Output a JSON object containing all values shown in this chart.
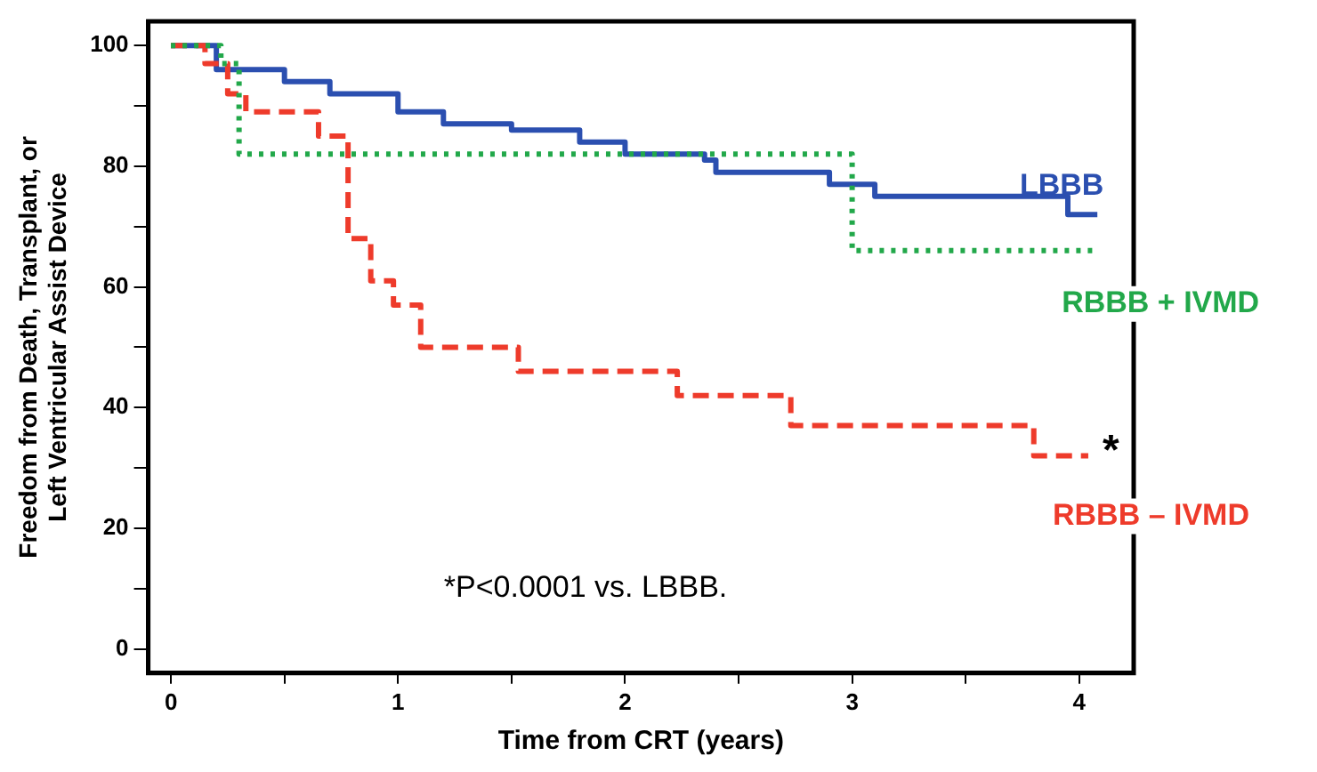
{
  "chart_data": {
    "type": "step",
    "xlabel": "Time from CRT (years)",
    "ylabel": "Freedom from Death, Transplant, or Left Ventricular Assist Device",
    "xlim": [
      -0.1,
      4.24
    ],
    "ylim": [
      -4,
      104
    ],
    "xticks": [
      0,
      {
        "value": 0.5,
        "label": null
      },
      1,
      {
        "value": 1.5,
        "label": null
      },
      2,
      {
        "value": 2.5,
        "label": null
      },
      3,
      {
        "value": 3.5,
        "label": null
      },
      4
    ],
    "yticks": [
      0,
      {
        "value": 10,
        "label": null
      },
      20,
      {
        "value": 30,
        "label": null
      },
      40,
      {
        "value": 50,
        "label": null
      },
      60,
      {
        "value": 70,
        "label": null
      },
      80,
      {
        "value": 90,
        "label": null
      },
      100
    ],
    "grid": false,
    "legend": false,
    "marker": "none",
    "series": [
      {
        "name": "LBBB",
        "color": "#2b4fb0",
        "line_style": "solid",
        "x": [
          0,
          0.2,
          0.5,
          0.7,
          1,
          1.2,
          1.5,
          1.8,
          2,
          2.35,
          2.4,
          2.9,
          3.1,
          3.95,
          4.08
        ],
        "values": [
          100,
          96,
          94,
          92,
          89,
          87,
          86,
          84,
          82,
          81,
          79,
          77,
          75,
          72,
          72
        ]
      },
      {
        "name": "RBBB + IVMD",
        "color": "#22a84a",
        "line_style": "dotted",
        "x": [
          0,
          0.22,
          0.3,
          3,
          4.08
        ],
        "values": [
          100,
          97,
          82,
          66,
          66
        ]
      },
      {
        "name": "RBBB – IVMD",
        "color": "#ee3b2b",
        "line_style": "dashed",
        "x": [
          0,
          0.15,
          0.25,
          0.33,
          0.65,
          0.78,
          0.88,
          0.98,
          1.1,
          1.53,
          2.23,
          2.73,
          3.8,
          4.04
        ],
        "values": [
          100,
          97,
          92,
          89,
          85,
          68,
          61,
          57,
          50,
          46,
          42,
          37,
          32,
          32
        ]
      }
    ],
    "annotations": [
      "*",
      "*P<0.0001 vs. LBBB."
    ]
  }
}
